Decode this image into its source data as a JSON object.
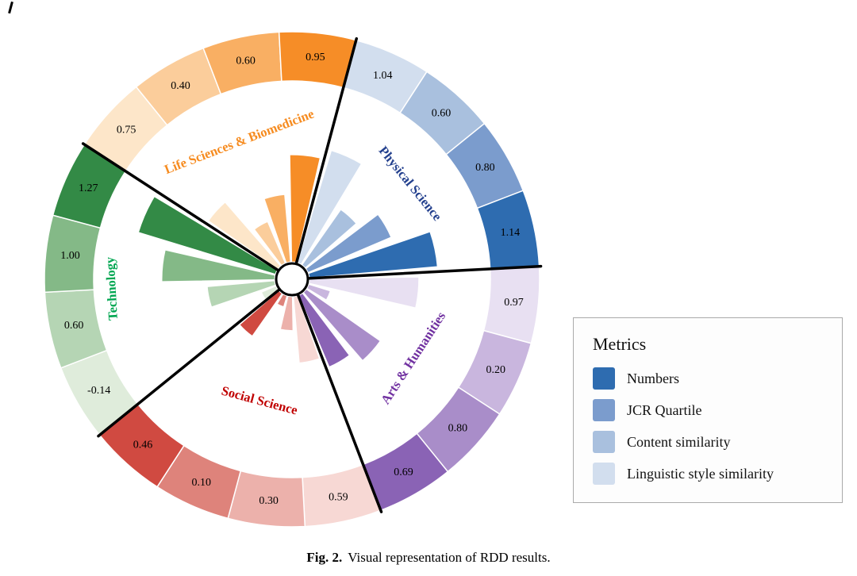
{
  "figure": {
    "caption_label": "Fig. 2.",
    "caption_text": "Visual representation of RDD results."
  },
  "legend": {
    "title": "Metrics",
    "items": [
      {
        "label": "Numbers",
        "color": "#2e6cb0"
      },
      {
        "label": "JCR Quartile",
        "color": "#7b9ccd"
      },
      {
        "label": "Content similarity",
        "color": "#a9c0de"
      },
      {
        "label": "Linguistic style similarity",
        "color": "#d2deee"
      }
    ]
  },
  "chart_data": {
    "type": "polar-rose",
    "title": "Visual representation of RDD results",
    "metrics": [
      "Numbers",
      "JCR Quartile",
      "Content similarity",
      "Linguistic style similarity"
    ],
    "sector_start_angle_deg": 15,
    "sector_span_deg": 72,
    "ring_order_clockwise": "lightest (Linguistic style similarity) first, darkest (Numbers) last within each sector",
    "legend_position": "right",
    "categories": [
      {
        "name": "Physical Science",
        "label_color": "#24418e",
        "palette": [
          "#2e6cb0",
          "#7b9ccd",
          "#a9c0de",
          "#d2deee"
        ],
        "values": [
          1.14,
          0.8,
          0.6,
          1.04
        ]
      },
      {
        "name": "Arts & Humanities",
        "label_color": "#7030a0",
        "palette": [
          "#8a63b5",
          "#a98dc9",
          "#c9b6de",
          "#e8e0f2"
        ],
        "values": [
          0.69,
          0.8,
          0.2,
          0.97
        ]
      },
      {
        "name": "Social Science",
        "label_color": "#c00000",
        "palette": [
          "#d04a41",
          "#de837b",
          "#ecb1ab",
          "#f7d8d4"
        ],
        "values": [
          0.46,
          0.1,
          0.3,
          0.59
        ]
      },
      {
        "name": "Technology",
        "label_color": "#00a651",
        "palette": [
          "#338a46",
          "#84b987",
          "#b5d5b4",
          "#dfecdb"
        ],
        "values": [
          1.27,
          1.0,
          0.6,
          -0.14
        ]
      },
      {
        "name": "Life Sciences & Biomedicine",
        "label_color": "#f68b1f",
        "palette": [
          "#f68d27",
          "#f9af63",
          "#fbcd9b",
          "#fde6c9"
        ],
        "values": [
          0.95,
          0.6,
          0.4,
          0.75
        ]
      }
    ]
  }
}
